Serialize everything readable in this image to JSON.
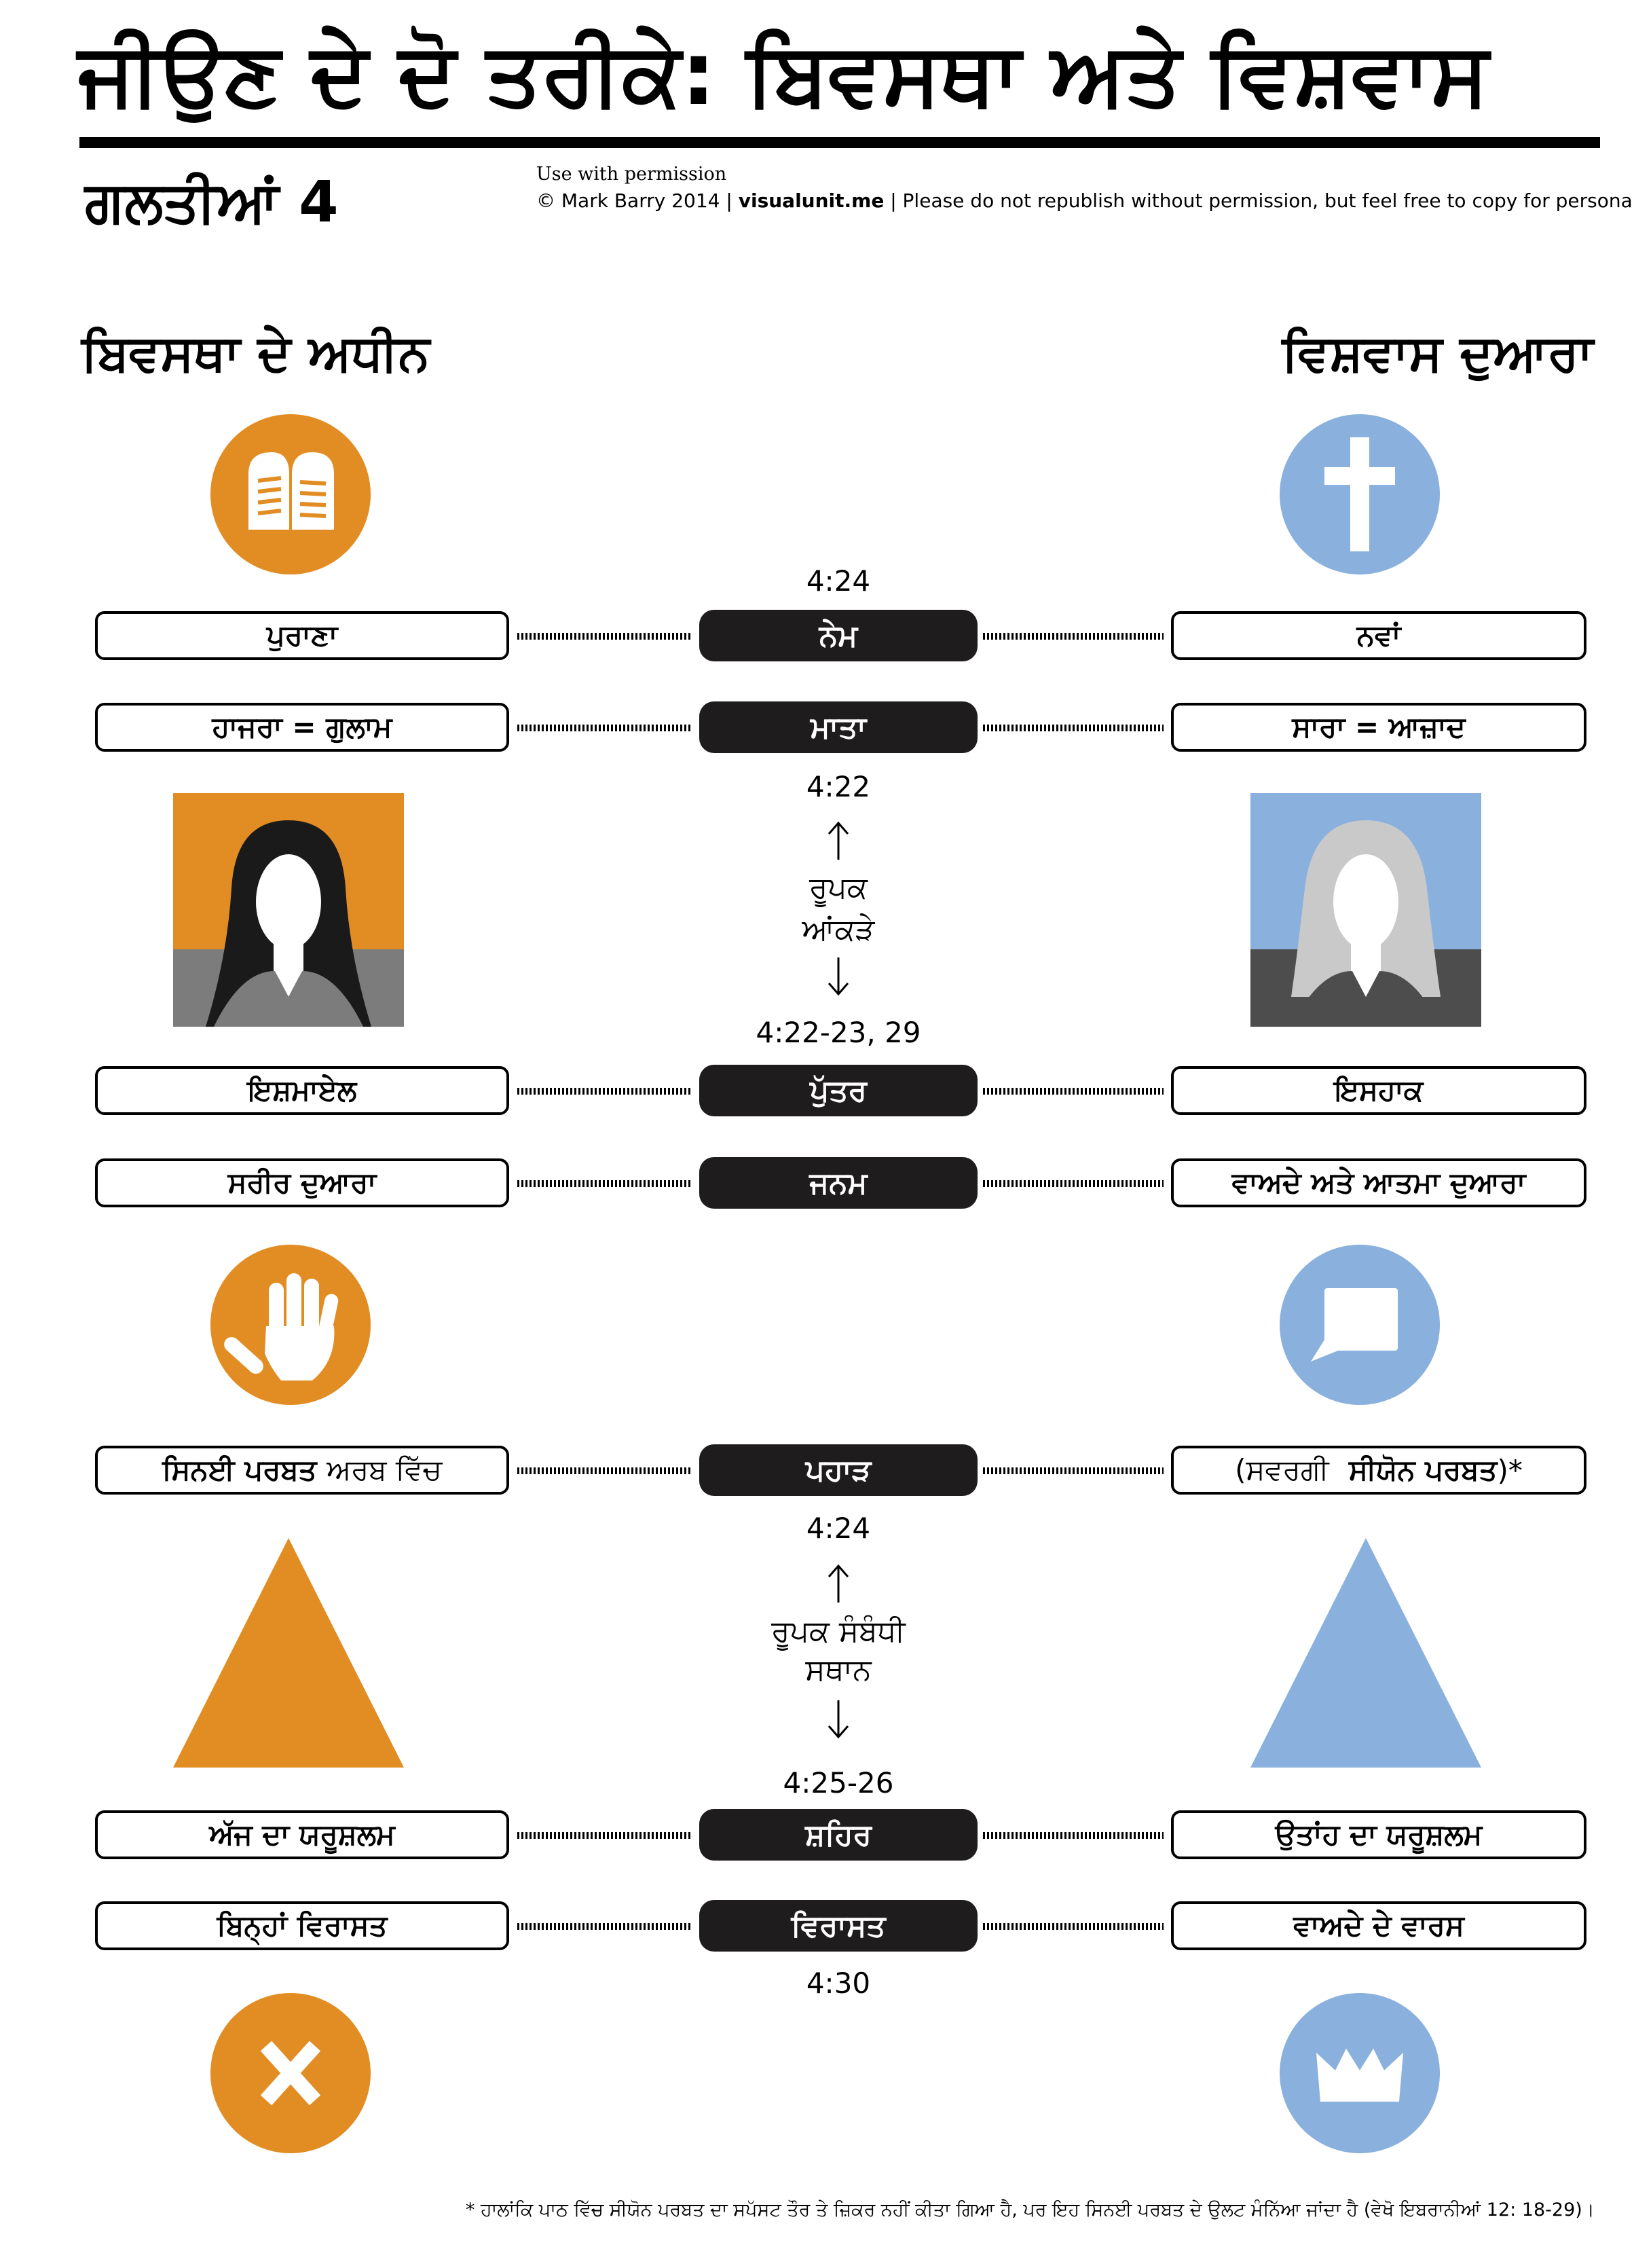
{
  "title": "ਜੀਉਣ ਦੇ ਦੋ ਤਰੀਕੇ: ਬਿਵਸਥਾ ਅਤੇ ਵਿਸ਼ਵਾਸ",
  "subtitle": "ਗਲਤੀਆਂ 4",
  "permission": {
    "line1": "Use with permission",
    "copyright": "© Mark Barry 2014",
    "site": "visualunit.me",
    "notice": "Please do not republish without permission, but feel free to copy for personal use."
  },
  "columns": {
    "left": "ਬਿਵਸਥਾ ਦੇ ਅਧੀਨ",
    "right": "ਵਿਸ਼ਵਾਸ ਦੁਆਰਾ"
  },
  "icons": {
    "left": [
      "tablets-icon",
      "raised-hand-icon",
      "x-icon"
    ],
    "right": [
      "cross-icon",
      "speech-bubble-icon",
      "crown-icon"
    ]
  },
  "colors": {
    "left": "#e28d24",
    "right": "#8ab1dd",
    "pill": "#1e1c1c"
  },
  "references": {
    "covenant": "4:24",
    "figures": "4:22",
    "son": "4:22-23, 29",
    "mountain": "4:24",
    "city": "4:25-26",
    "inheritance": "4:30"
  },
  "rows": [
    {
      "key": "covenant",
      "left": "ਪੁਰਾਣਾ",
      "center": "ਨੇਮ",
      "right": "ਨਵਾਂ"
    },
    {
      "key": "mother",
      "left": "ਹਾਜਰਾ  = ਗੁਲਾਮ",
      "center": "ਮਾਤਾ",
      "right": "ਸਾਰਾ = ਆਜ਼ਾਦ"
    },
    {
      "key": "son",
      "left": "ਇਸ਼ਮਾਏਲ",
      "center": "ਪੁੱਤਰ",
      "right": "ਇਸਹਾਕ"
    },
    {
      "key": "birth",
      "left": "ਸਰੀਰ ਦੁਆਰਾ",
      "center": "ਜਨਮ",
      "right": "ਵਾਅਦੇ ਅਤੇ ਆਤਮਾ ਦੁਆਰਾ"
    },
    {
      "key": "mountain",
      "left_bold": "ਸਿਨਈ ਪਰਬਤ",
      "left_rest": "ਅਰਬ ਵਿੱਚ",
      "center": "ਪਹਾੜ",
      "right_pre": "(ਸਵਰਗੀ",
      "right_bold": "ਸੀਯੋਨ ਪਰਬਤ",
      "right_post": ")*"
    },
    {
      "key": "city",
      "left": "ਅੱਜ ਦਾ ਯਰੂਸ਼ਲਮ",
      "center": "ਸ਼ਹਿਰ",
      "right": "ਉਤਾਂਹ ਦਾ ਯਰੂਸ਼ਲਮ"
    },
    {
      "key": "inheritance",
      "left": "ਬਿਨ੍ਹਾਂ ਵਿਰਾਸਤ",
      "center": "ਵਿਰਾਸਤ",
      "right": "ਵਾਅਦੇ ਦੇ ਵਾਰਸ"
    }
  ],
  "figure_labels": {
    "figures_line1": "ਰੂਪਕ",
    "figures_line2": "ਆਂਕੜੇ",
    "places_line1": "ਰੂਪਕ ਸੰਬੰਧੀ",
    "places_line2": "ਸਥਾਨ"
  },
  "footnote": "* ਹਾਲਾਂਕਿ ਪਾਠ ਵਿੱਚ ਸੀਯੋਨ ਪਰਬਤ ਦਾ ਸਪੱਸਟ ਤੌਰ ਤੇ ਜ਼ਿਕਰ ਨਹੀਂ ਕੀਤਾ ਗਿਆ ਹੈ, ਪਰ ਇਹ ਸਿਨਈ ਪਰਬਤ ਦੇ ਉਲਟ ਮੰਨਿੱਆ ਜਾਂਦਾ ਹੈ (ਵੇਖੋ ਇਬਰਾਨੀਆਂ 12: 18-29)।"
}
